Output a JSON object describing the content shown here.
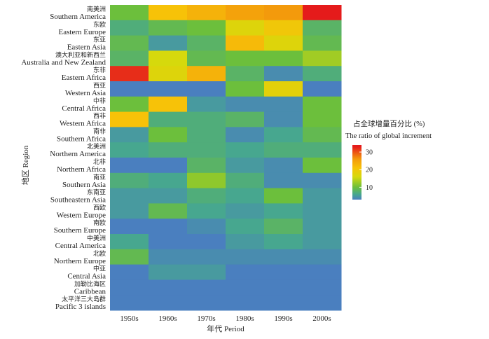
{
  "chart_data": {
    "type": "heatmap",
    "xlabel": "年代 Period",
    "ylabel": "地区 Region",
    "x": [
      "1950s",
      "1960s",
      "1970s",
      "1980s",
      "1990s",
      "2000s"
    ],
    "rows": [
      {
        "zh": "南美洲",
        "en": "Southern America",
        "values": [
          10,
          21,
          23,
          25,
          26,
          33
        ]
      },
      {
        "zh": "东欧",
        "en": "Eastern Europe",
        "values": [
          7,
          9,
          10,
          17,
          20,
          8
        ]
      },
      {
        "zh": "东亚",
        "en": "Eastern Asia",
        "values": [
          9,
          5,
          8,
          22,
          17,
          9
        ]
      },
      {
        "zh": "澳大利亚和新西兰",
        "en": "Australia and New Zealand",
        "values": [
          8,
          16,
          9,
          10,
          10,
          13
        ]
      },
      {
        "zh": "东非",
        "en": "Eastern Africa",
        "values": [
          32,
          17,
          23,
          8,
          4,
          7
        ]
      },
      {
        "zh": "西亚",
        "en": "Western Asia",
        "values": [
          3,
          3,
          2,
          10,
          18,
          3
        ]
      },
      {
        "zh": "中非",
        "en": "Central Africa",
        "values": [
          10,
          21,
          5,
          4,
          4,
          10
        ]
      },
      {
        "zh": "西非",
        "en": "Western Africa",
        "values": [
          21,
          7,
          7,
          8,
          4,
          10
        ]
      },
      {
        "zh": "南非",
        "en": "Southern Africa",
        "values": [
          5,
          10,
          7,
          4,
          6,
          9
        ]
      },
      {
        "zh": "北美洲",
        "en": "Northern America",
        "values": [
          6,
          7,
          7,
          6,
          7,
          7
        ]
      },
      {
        "zh": "北非",
        "en": "Northern Africa",
        "values": [
          3,
          2,
          8,
          5,
          4,
          10
        ]
      },
      {
        "zh": "南亚",
        "en": "Southern Asia",
        "values": [
          7,
          6,
          12,
          7,
          4,
          4
        ]
      },
      {
        "zh": "东南亚",
        "en": "Southeastern Asia",
        "values": [
          5,
          5,
          7,
          6,
          10,
          5
        ]
      },
      {
        "zh": "西欧",
        "en": "Western Europe",
        "values": [
          5,
          9,
          6,
          5,
          6,
          5
        ]
      },
      {
        "zh": "南欧",
        "en": "Southern Europe",
        "values": [
          3,
          3,
          4,
          6,
          8,
          5
        ]
      },
      {
        "zh": "中美洲",
        "en": "Central America",
        "values": [
          6,
          2,
          3,
          5,
          6,
          5
        ]
      },
      {
        "zh": "北欧",
        "en": "Northern Europe",
        "values": [
          9,
          4,
          4,
          4,
          4,
          4
        ]
      },
      {
        "zh": "中亚",
        "en": "Central Asia",
        "values": [
          3,
          5,
          5,
          3,
          3,
          3
        ]
      },
      {
        "zh": "加勒比海区",
        "en": "Caribbean",
        "values": [
          3,
          3,
          3,
          3,
          3,
          3
        ]
      },
      {
        "zh": "太平洋三大岛群",
        "en": "Pacific 3 islands",
        "values": [
          3,
          3,
          3,
          3,
          3,
          3
        ]
      }
    ],
    "legend": {
      "title_zh": "占全球增量百分比 (%)",
      "title_en": "The ratio of global increment",
      "ticks": [
        10,
        20,
        30
      ],
      "range": [
        3,
        34
      ],
      "placement": "right"
    },
    "colors": {
      "low": "#4a7fbf",
      "mid_low": "#47a78f",
      "mid": "#6cbf3c",
      "mid_high": "#d6d90c",
      "high_low": "#f7c208",
      "high": "#f39a0c",
      "max": "#e51b1b"
    },
    "grid": false
  }
}
